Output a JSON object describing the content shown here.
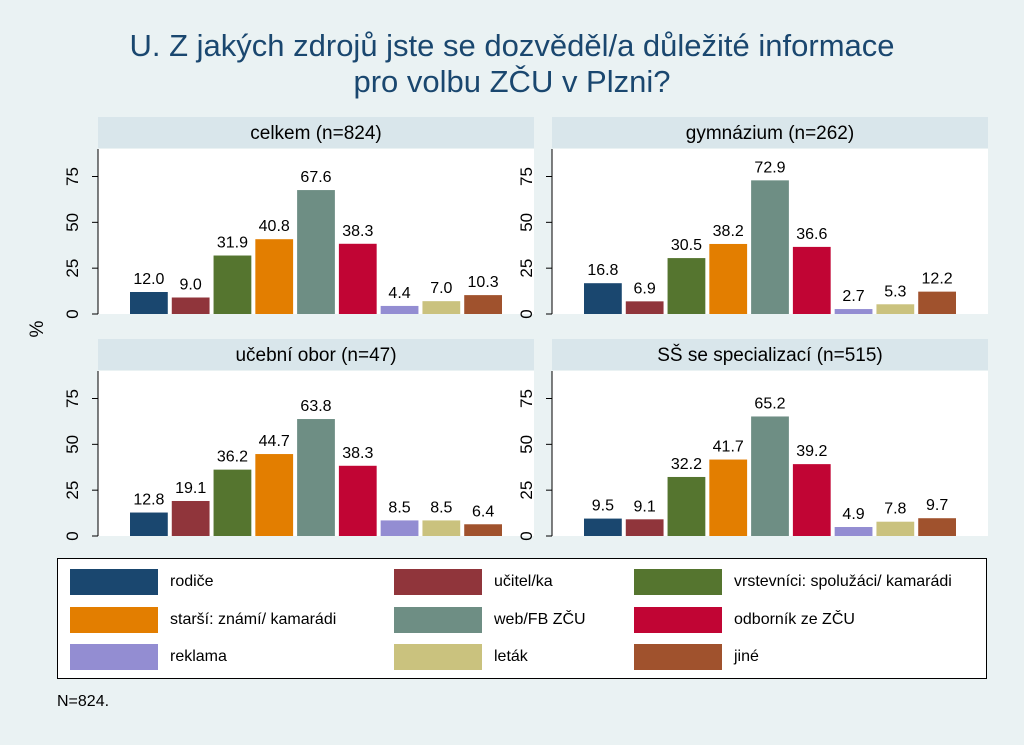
{
  "title_lines": [
    "U. Z jakých zdrojů jste se dozvěděl/a důležité informace",
    "pro volbu ZČU v Plzni?"
  ],
  "note": "N=824.",
  "chart_data": {
    "type": "bar",
    "ylabel": "%",
    "ylim": [
      0,
      90
    ],
    "yticks": [
      0,
      25,
      50,
      75
    ],
    "grid": false,
    "legend_position": "bottom",
    "series_names": [
      "rodiče",
      "učitel/ka",
      "vrstevníci: spolužáci/ kamarádi",
      "starší: známí/ kamarádi",
      "web/FB ZČU",
      "odborník ze ZČU",
      "reklama",
      "leták",
      "jiné"
    ],
    "colors": [
      "#1a476f",
      "#90353b",
      "#55752f",
      "#e37e00",
      "#6e8e84",
      "#c10534",
      "#938dd2",
      "#cac27e",
      "#a0522d"
    ],
    "panels": [
      {
        "title": "celkem (n=824)",
        "values": [
          12.0,
          9.0,
          31.9,
          40.8,
          67.6,
          38.3,
          4.4,
          7.0,
          10.3
        ],
        "labels": [
          "12.0",
          "9.0",
          "31.9",
          "40.8",
          "67.6",
          "38.3",
          "4.4",
          "7.0",
          "10.3"
        ]
      },
      {
        "title": "gymnázium (n=262)",
        "values": [
          16.8,
          6.9,
          30.5,
          38.2,
          72.9,
          36.6,
          2.7,
          5.3,
          12.2
        ],
        "labels": [
          "16.8",
          "6.9",
          "30.5",
          "38.2",
          "72.9",
          "36.6",
          "2.7",
          "5.3",
          "12.2"
        ]
      },
      {
        "title": "učební obor (n=47)",
        "values": [
          12.8,
          19.1,
          36.2,
          44.7,
          63.8,
          38.3,
          8.5,
          8.5,
          6.4
        ],
        "labels": [
          "12.8",
          "19.1",
          "36.2",
          "44.7",
          "63.8",
          "38.3",
          "8.5",
          "8.5",
          "6.4"
        ]
      },
      {
        "title": "SŠ se specializací (n=515)",
        "values": [
          9.5,
          9.1,
          32.2,
          41.7,
          65.2,
          39.2,
          4.9,
          7.8,
          9.7
        ],
        "labels": [
          "9.5",
          "9.1",
          "32.2",
          "41.7",
          "65.2",
          "39.2",
          "4.9",
          "7.8",
          "9.7"
        ]
      }
    ]
  }
}
